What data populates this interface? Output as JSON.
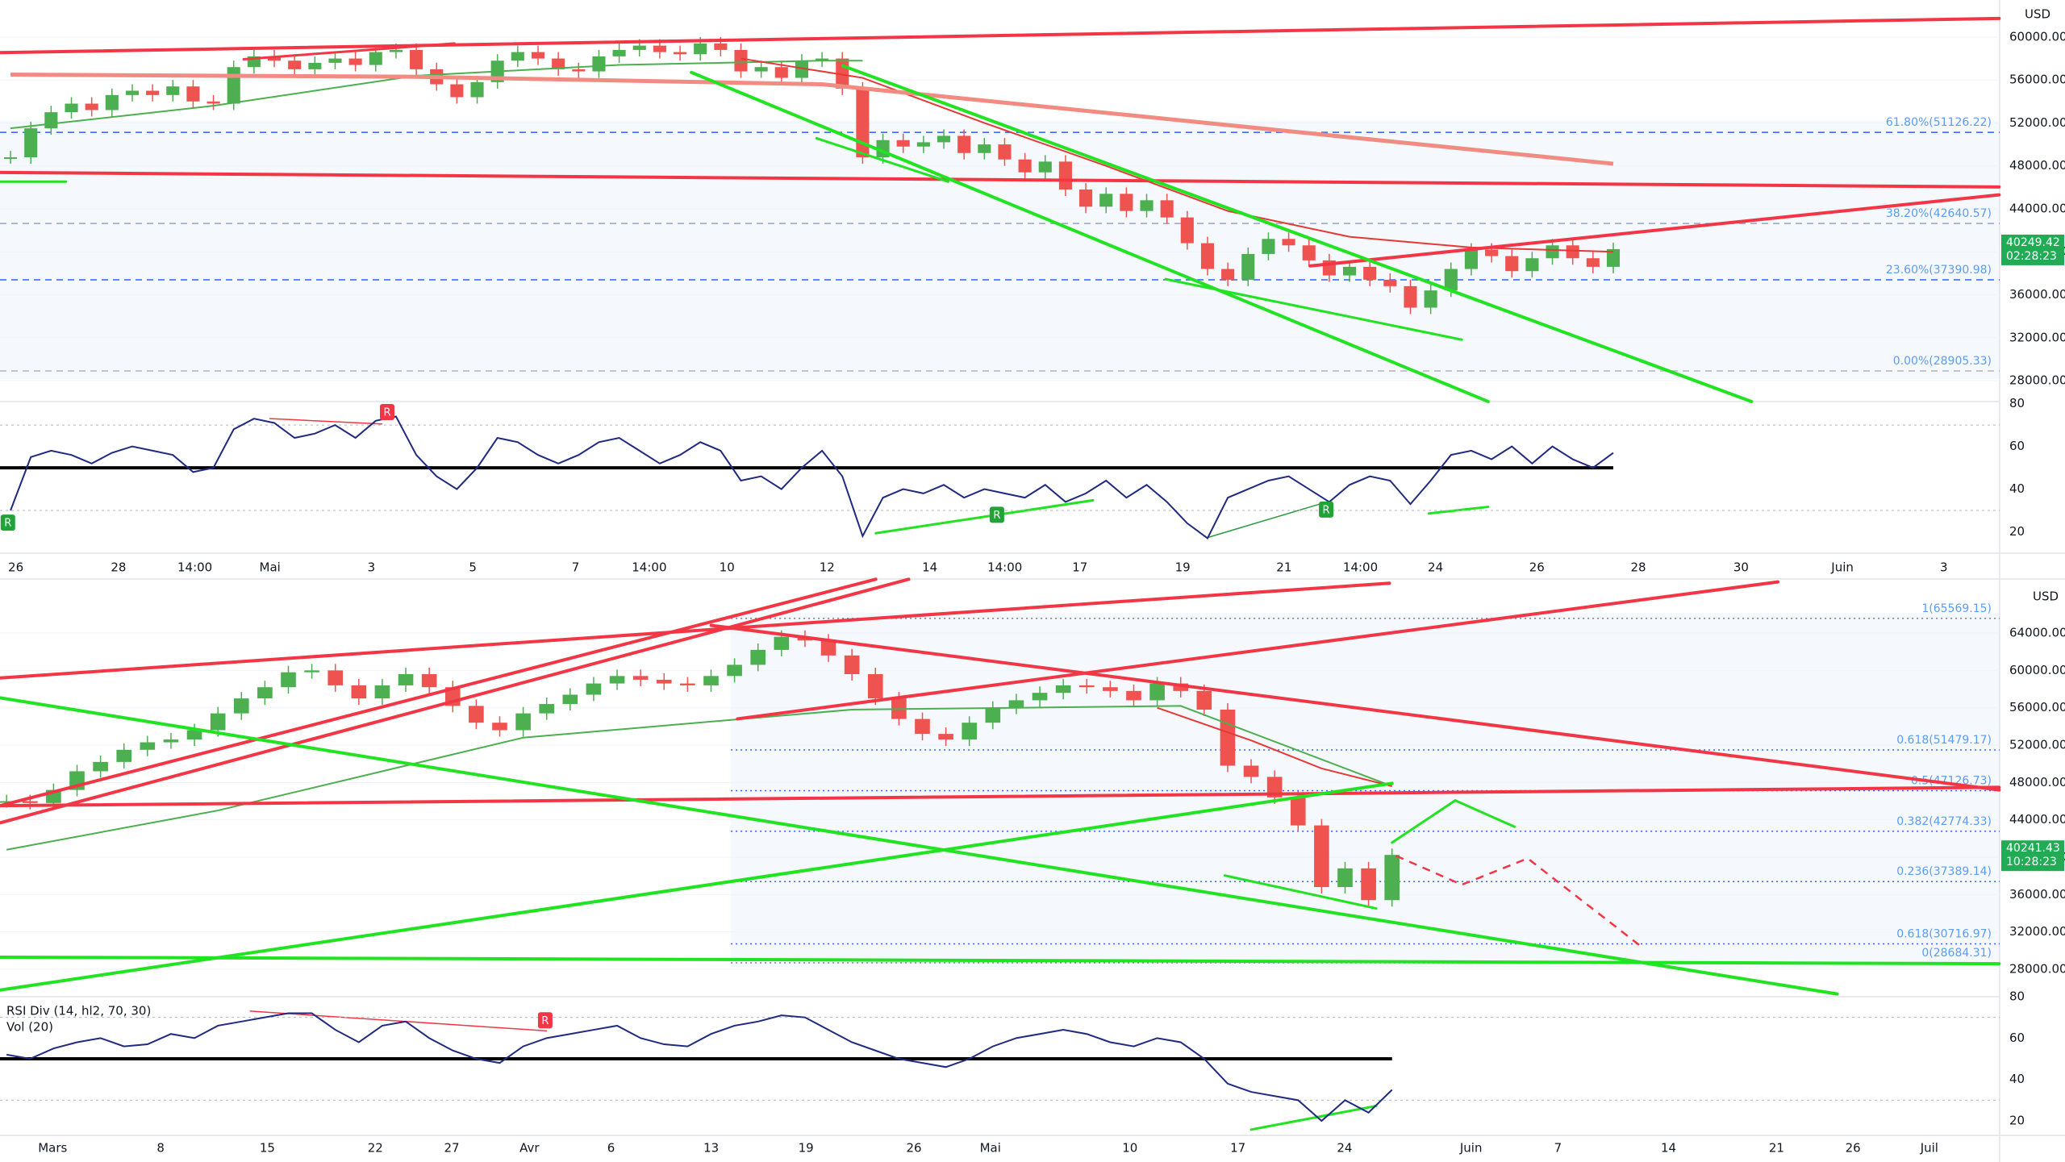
{
  "chart_data": [
    {
      "type": "candlestick",
      "currency": "USD",
      "ylim": [
        26050,
        63450
      ],
      "yticks": [
        {
          "value": 60000,
          "label": "60000.00"
        },
        {
          "value": 56000,
          "label": "56000.00"
        },
        {
          "value": 52000,
          "label": "52000.00"
        },
        {
          "value": 48000,
          "label": "48000.00"
        },
        {
          "value": 44000,
          "label": "44000.00"
        },
        {
          "value": 40000,
          "label": "40000.00"
        },
        {
          "value": 36000,
          "label": "36000.00"
        },
        {
          "value": 32000,
          "label": "32000.00"
        },
        {
          "value": 28000,
          "label": "28000.00"
        }
      ],
      "values": [
        48800,
        51500,
        53000,
        53800,
        53200,
        54600,
        55000,
        54600,
        55400,
        54000,
        53800,
        57200,
        58200,
        57800,
        57000,
        57600,
        58000,
        57400,
        58600,
        58800,
        57000,
        55600,
        54400,
        55800,
        57800,
        58600,
        58000,
        57000,
        56800,
        58200,
        58800,
        59200,
        58600,
        58400,
        59400,
        58800,
        56800,
        57200,
        56200,
        57800,
        58000,
        55200,
        48800,
        50400,
        49800,
        50200,
        50800,
        49200,
        50000,
        48600,
        47400,
        48400,
        45800,
        44200,
        45400,
        43800,
        44800,
        43200,
        40800,
        38400,
        37400,
        39800,
        41200,
        40600,
        39200,
        37800,
        38600,
        37400,
        36800,
        34800,
        36400,
        38400,
        40200,
        39600,
        38200,
        39400,
        40600,
        39400,
        38600,
        40249.42
      ],
      "ma_series": [
        {
          "color": "#4caf50",
          "x": [
            0,
            10,
            20,
            30,
            40,
            42
          ],
          "values": [
            51500,
            53600,
            56400,
            57400,
            57800,
            57800
          ]
        },
        {
          "color": "#e53935",
          "x": [
            36,
            42,
            48,
            54,
            60,
            66,
            72,
            79
          ],
          "values": [
            58000,
            56200,
            52000,
            48000,
            43800,
            41400,
            40400,
            40000
          ]
        },
        {
          "color": "#f28b82",
          "x": [
            0,
            20,
            40,
            60,
            79
          ],
          "values": [
            56500,
            56300,
            55600,
            51800,
            48200
          ]
        }
      ],
      "fib_levels": [
        {
          "value": 51126.22,
          "label": "61.80%(51126.22)",
          "color": "#2962ff"
        },
        {
          "value": 42640.57,
          "label": "38.20%(42640.57)",
          "color": "#90a4c8"
        },
        {
          "value": 37390.98,
          "label": "23.60%(37390.98)",
          "color": "#2962ff"
        },
        {
          "value": 28905.33,
          "label": "0.00%(28905.33)",
          "color": "#b2b5be"
        }
      ],
      "last_price": 40249.42,
      "countdown": "02:28:23",
      "xtick_labels": [
        "26",
        "28",
        "14:00",
        "Mai",
        "3",
        "5",
        "7",
        "14:00",
        "10",
        "12",
        "14",
        "14:00",
        "17",
        "19",
        "21",
        "14:00",
        "24",
        "26",
        "28",
        "30",
        "Juin",
        "3"
      ],
      "rsi": {
        "color": "#1f2a80",
        "ylim": [
          10,
          81
        ],
        "yticks": [
          80,
          60,
          40,
          20
        ],
        "bands": [
          70,
          30
        ],
        "midline": 50,
        "values": [
          30,
          55,
          58,
          56,
          52,
          57,
          60,
          58,
          56,
          48,
          50,
          68,
          73,
          71,
          64,
          66,
          70,
          64,
          72,
          74,
          56,
          46,
          40,
          50,
          64,
          62,
          56,
          52,
          56,
          62,
          64,
          58,
          52,
          56,
          62,
          58,
          44,
          46,
          40,
          50,
          58,
          46,
          18,
          36,
          40,
          38,
          42,
          36,
          40,
          38,
          36,
          42,
          34,
          38,
          44,
          36,
          42,
          34,
          24,
          17,
          36,
          40,
          44,
          46,
          40,
          34,
          42,
          46,
          44,
          33,
          44,
          56,
          58,
          54,
          60,
          52,
          60,
          54,
          50,
          57
        ],
        "signal_labels": [
          "R",
          "R",
          "R",
          "R"
        ]
      }
    },
    {
      "type": "candlestick",
      "currency": "USD",
      "ylim": [
        25060,
        69790
      ],
      "yticks": [
        {
          "value": 64000,
          "label": "64000.00"
        },
        {
          "value": 60000,
          "label": "60000.00"
        },
        {
          "value": 56000,
          "label": "56000.00"
        },
        {
          "value": 52000,
          "label": "52000.00"
        },
        {
          "value": 48000,
          "label": "48000.00"
        },
        {
          "value": 44000,
          "label": "44000.00"
        },
        {
          "value": 40000,
          "label": "40000.00"
        },
        {
          "value": 36000,
          "label": "36000.00"
        },
        {
          "value": 32000,
          "label": "32000.00"
        },
        {
          "value": 28000,
          "label": "28000.00"
        }
      ],
      "values": [
        46000,
        45800,
        47200,
        49200,
        50200,
        51500,
        52300,
        52600,
        53600,
        55400,
        57000,
        58200,
        59800,
        60000,
        58400,
        57000,
        58400,
        59600,
        58200,
        56200,
        54400,
        53600,
        55400,
        56400,
        57400,
        58600,
        59400,
        59000,
        58600,
        58400,
        59400,
        60600,
        62200,
        63600,
        63200,
        61600,
        59600,
        57000,
        54800,
        53200,
        52600,
        54400,
        56000,
        56800,
        57600,
        58400,
        58200,
        57800,
        56800,
        58600,
        57800,
        55800,
        49800,
        48600,
        46400,
        43400,
        36800,
        38800,
        35400,
        40241.43
      ],
      "ma_series": [
        {
          "color": "#4caf50",
          "x": [
            0,
            9,
            22,
            36,
            50,
            59
          ],
          "values": [
            40800,
            45000,
            52800,
            55800,
            56200,
            47600
          ]
        },
        {
          "color": "#e53935",
          "x": [
            49,
            53,
            56,
            59
          ],
          "values": [
            56000,
            52500,
            49500,
            47600
          ]
        }
      ],
      "fib_levels": [
        {
          "value": 65569.15,
          "label": "1(65569.15)",
          "color": "#787b86"
        },
        {
          "value": 51479.17,
          "label": "0.618(51479.17)",
          "color": "#2962ff"
        },
        {
          "value": 47126.73,
          "label": "0.5(47126.73)",
          "color": "#2962ff"
        },
        {
          "value": 42774.33,
          "label": "0.382(42774.33)",
          "color": "#2962ff"
        },
        {
          "value": 37389.14,
          "label": "0.236(37389.14)",
          "color": "#2962ff"
        },
        {
          "value": 30716.97,
          "label": "0.618(30716.97)",
          "color": "#2962ff"
        },
        {
          "value": 28684.31,
          "label": "0(28684.31)",
          "color": "#787b86"
        }
      ],
      "last_price": 40241.43,
      "countdown": "10:28:23",
      "xtick_labels": [
        "Mars",
        "8",
        "15",
        "22",
        "27",
        "Avr",
        "6",
        "13",
        "19",
        "26",
        "Mai",
        "10",
        "17",
        "24",
        "Juin",
        "7",
        "14",
        "21",
        "26",
        "Juil"
      ],
      "legend": [
        "RSI Div (14, hl2, 70, 30)",
        "Vol (20)"
      ],
      "rsi": {
        "color": "#1f2a80",
        "ylim": [
          13,
          80
        ],
        "yticks": [
          80,
          60,
          40,
          20
        ],
        "bands": [
          70,
          30
        ],
        "midline": 50,
        "values": [
          52,
          50,
          55,
          58,
          60,
          56,
          57,
          62,
          60,
          66,
          68,
          70,
          72,
          72,
          64,
          58,
          66,
          68,
          60,
          54,
          50,
          48,
          56,
          60,
          62,
          64,
          66,
          60,
          57,
          56,
          62,
          66,
          68,
          71,
          70,
          64,
          58,
          54,
          50,
          48,
          46,
          50,
          56,
          60,
          62,
          64,
          62,
          58,
          56,
          60,
          58,
          50,
          38,
          34,
          32,
          30,
          20,
          30,
          24,
          35
        ],
        "signal_labels": [
          "R"
        ]
      }
    }
  ]
}
